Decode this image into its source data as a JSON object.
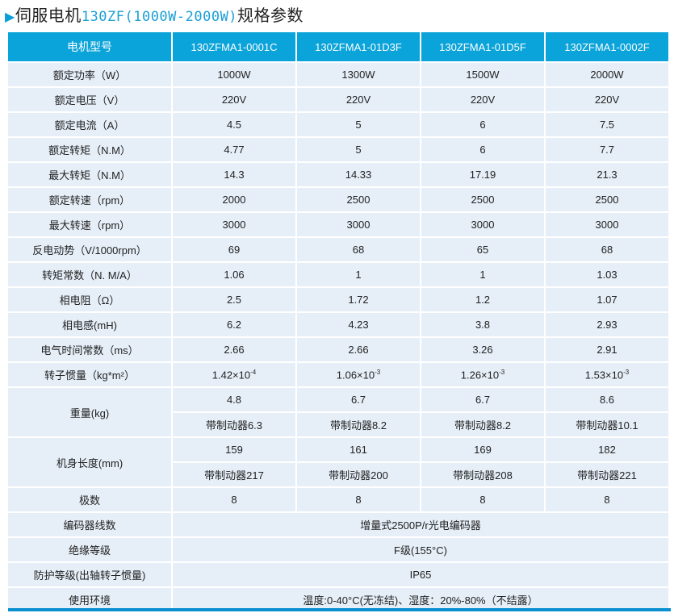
{
  "title": {
    "arrow_icon": "right-triangle-icon",
    "prefix": "伺服电机",
    "model": "130ZF(1000W-2000W)",
    "suffix": "规格参数"
  },
  "colors": {
    "header": "#0aa3da",
    "row": "#e6eff8",
    "accent": "#1a9fd6"
  },
  "header": [
    "电机型号",
    "130ZFMA1-0001C",
    "130ZFMA1-01D3F",
    "130ZFMA1-01D5F",
    "130ZFMA1-0002F"
  ],
  "rows": [
    {
      "label": "额定功率（W）",
      "values": [
        "1000W",
        "1300W",
        "1500W",
        "2000W"
      ]
    },
    {
      "label": "额定电压（V）",
      "values": [
        "220V",
        "220V",
        "220V",
        "220V"
      ]
    },
    {
      "label": "额定电流（A）",
      "values": [
        "4.5",
        "5",
        "6",
        "7.5"
      ]
    },
    {
      "label": "额定转矩（N.M）",
      "values": [
        "4.77",
        "5",
        "6",
        "7.7"
      ]
    },
    {
      "label": "最大转矩（N.M）",
      "values": [
        "14.3",
        "14.33",
        "17.19",
        "21.3"
      ]
    },
    {
      "label": "额定转速（rpm）",
      "values": [
        "2000",
        "2500",
        "2500",
        "2500"
      ]
    },
    {
      "label": "最大转速（rpm）",
      "values": [
        "3000",
        "3000",
        "3000",
        "3000"
      ]
    },
    {
      "label": "反电动势（V/1000rpm）",
      "values": [
        "69",
        "68",
        "65",
        "68"
      ]
    },
    {
      "label": "转矩常数（N. M/A）",
      "values": [
        "1.06",
        "1",
        "1",
        "1.03"
      ]
    },
    {
      "label": "相电阻（Ω）",
      "values": [
        "2.5",
        "1.72",
        "1.2",
        "1.07"
      ]
    },
    {
      "label": "相电感(mH)",
      "values": [
        "6.2",
        "4.23",
        "3.8",
        "2.93"
      ]
    },
    {
      "label": "电气时间常数（ms）",
      "values": [
        "2.66",
        "2.66",
        "3.26",
        "2.91"
      ]
    }
  ],
  "inertia": {
    "label": "转子惯量（kg*m²）",
    "values": [
      {
        "m": "1.42×10",
        "e": "-4"
      },
      {
        "m": "1.06×10",
        "e": "-3"
      },
      {
        "m": "1.26×10",
        "e": "-3"
      },
      {
        "m": "1.53×10",
        "e": "-3"
      }
    ]
  },
  "weight": {
    "label": "重量(kg)",
    "values": [
      "4.8",
      "6.7",
      "6.7",
      "8.6"
    ],
    "brake": [
      "带制动器6.3",
      "带制动器8.2",
      "带制动器8.2",
      "带制动器10.1"
    ]
  },
  "length": {
    "label": "机身长度(mm)",
    "values": [
      "159",
      "161",
      "169",
      "182"
    ],
    "brake": [
      "带制动器217",
      "带制动器200",
      "带制动器208",
      "带制动器221"
    ]
  },
  "poles": {
    "label": "极数",
    "values": [
      "8",
      "8",
      "8",
      "8"
    ]
  },
  "shared": [
    {
      "label": "编码器线数",
      "value": "增量式2500P/r光电编码器"
    },
    {
      "label": "绝缘等级",
      "value": "F级(155°C)"
    },
    {
      "label": "防护等级(出轴转子惯量)",
      "value": "IP65"
    },
    {
      "label": "使用环境",
      "value": "温度:0-40°C(无冻结)、湿度：20%-80%（不结露）"
    }
  ]
}
